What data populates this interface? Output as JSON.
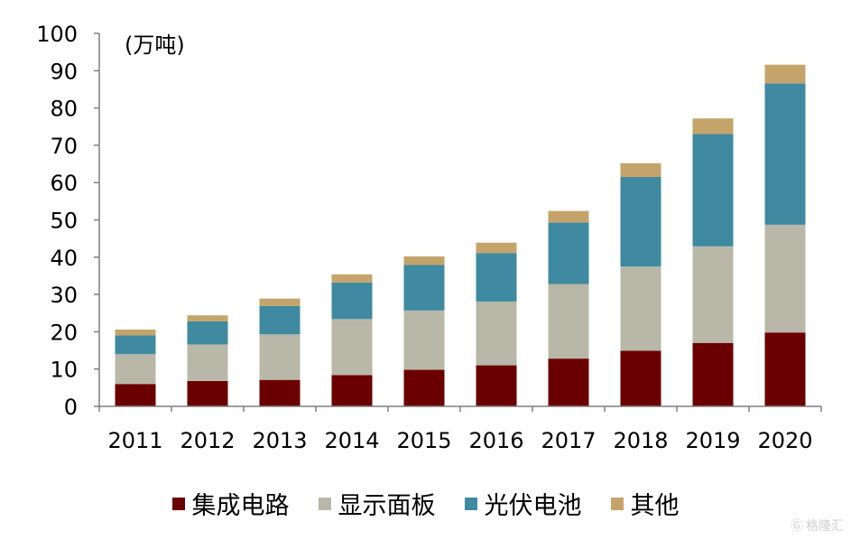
{
  "chart_data": {
    "type": "bar",
    "stacked": true,
    "unit_label": "(万吨)",
    "categories": [
      "2011",
      "2012",
      "2013",
      "2014",
      "2015",
      "2016",
      "2017",
      "2018",
      "2019",
      "2020"
    ],
    "ylim": [
      0,
      100
    ],
    "yticks": [
      0,
      10,
      20,
      30,
      40,
      50,
      60,
      70,
      80,
      90,
      100
    ],
    "series": [
      {
        "name": "集成电路",
        "color": "#6b0000",
        "values": [
          6.0,
          6.8,
          7.1,
          8.4,
          9.8,
          11.0,
          12.8,
          14.9,
          17.0,
          19.8
        ]
      },
      {
        "name": "显示面板",
        "color": "#b9b8a8",
        "values": [
          8.0,
          9.8,
          12.2,
          15.0,
          15.9,
          17.1,
          20.0,
          22.6,
          25.9,
          28.9
        ]
      },
      {
        "name": "光伏电池",
        "color": "#3f8aa0",
        "values": [
          5.0,
          6.2,
          7.6,
          9.8,
          12.2,
          13.0,
          16.5,
          24.0,
          30.1,
          37.9
        ]
      },
      {
        "name": "其他",
        "color": "#c4a46a",
        "values": [
          1.6,
          1.6,
          2.0,
          2.2,
          2.3,
          2.8,
          3.1,
          3.7,
          4.2,
          5.0
        ]
      }
    ],
    "legend_position": "bottom"
  },
  "watermark": {
    "icon": "gelonghui-logo-icon",
    "text": "格隆汇"
  }
}
